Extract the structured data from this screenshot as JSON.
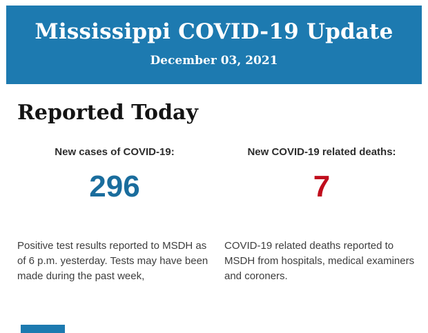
{
  "header": {
    "title": "Mississippi COVID-19 Update",
    "date": "December 03, 2021",
    "background_color": "#1d7ab0",
    "text_color": "#ffffff"
  },
  "section": {
    "title": "Reported Today"
  },
  "stats": [
    {
      "label": "New cases of COVID-19:",
      "value": "296",
      "value_color": "#1a6d9d",
      "description": "Positive test results reported to MSDH as of 6 p.m. yesterday. Tests may have been made during the past week,"
    },
    {
      "label": "New COVID-19 related deaths:",
      "value": "7",
      "value_color": "#c00d1d",
      "description": "COVID-19 related deaths reported to MSDH from hospitals, medical examiners and coroners."
    }
  ]
}
